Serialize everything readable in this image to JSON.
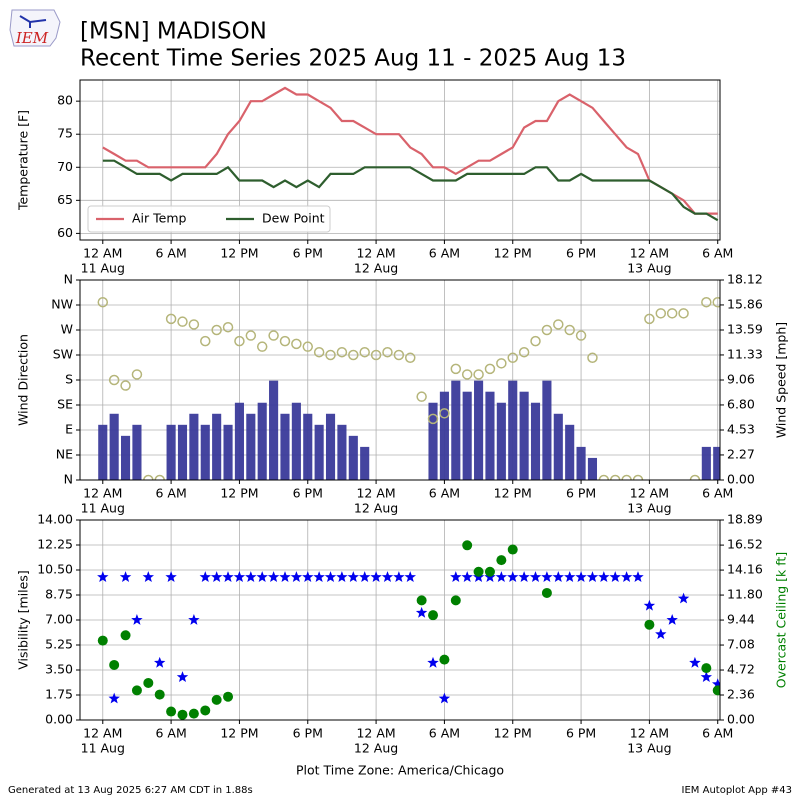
{
  "header": {
    "logo": "IEM",
    "title": "[MSN] MADISON",
    "subtitle": "Recent Time Series 2025 Aug 11 - 2025 Aug 13"
  },
  "footer": {
    "left": "Generated at 13 Aug 2025 6:27 AM CDT in 1.88s",
    "right": "IEM Autoplot App #43"
  },
  "chart_data": [
    {
      "type": "line",
      "ylabel": "Temperature [F]",
      "grid": true,
      "legend": "lower left",
      "xlim": [
        "2025-08-10T22:00",
        "2025-08-13T06:12"
      ],
      "xticks": [
        {
          "value": "2025-08-11T00:00",
          "label": "12 AM"
        },
        {
          "value": "2025-08-11T06:00",
          "label": "6 AM"
        },
        {
          "value": "2025-08-11T12:00",
          "label": "12 PM"
        },
        {
          "value": "2025-08-11T18:00",
          "label": "6 PM"
        },
        {
          "value": "2025-08-12T00:00",
          "label": "12 AM"
        },
        {
          "value": "2025-08-12T06:00",
          "label": "6 AM"
        },
        {
          "value": "2025-08-12T12:00",
          "label": "12 PM"
        },
        {
          "value": "2025-08-12T18:00",
          "label": "6 PM"
        },
        {
          "value": "2025-08-13T00:00",
          "label": "12 AM"
        },
        {
          "value": "2025-08-13T06:00",
          "label": "6 AM"
        }
      ],
      "xdates": [
        {
          "value": "2025-08-11T00:00",
          "label": "11 Aug"
        },
        {
          "value": "2025-08-12T00:00",
          "label": "12 Aug"
        },
        {
          "value": "2025-08-13T00:00",
          "label": "13 Aug"
        }
      ],
      "ylim": [
        59,
        83.2
      ],
      "yticks": [
        60,
        65,
        70,
        75,
        80
      ],
      "x": [
        "2025-08-11T00:00",
        "2025-08-11T01:00",
        "2025-08-11T02:00",
        "2025-08-11T03:00",
        "2025-08-11T04:00",
        "2025-08-11T05:00",
        "2025-08-11T06:00",
        "2025-08-11T07:00",
        "2025-08-11T08:00",
        "2025-08-11T09:00",
        "2025-08-11T10:00",
        "2025-08-11T11:00",
        "2025-08-11T12:00",
        "2025-08-11T13:00",
        "2025-08-11T14:00",
        "2025-08-11T15:00",
        "2025-08-11T16:00",
        "2025-08-11T17:00",
        "2025-08-11T18:00",
        "2025-08-11T19:00",
        "2025-08-11T20:00",
        "2025-08-11T21:00",
        "2025-08-11T22:00",
        "2025-08-11T23:00",
        "2025-08-12T00:00",
        "2025-08-12T01:00",
        "2025-08-12T02:00",
        "2025-08-12T03:00",
        "2025-08-12T04:00",
        "2025-08-12T05:00",
        "2025-08-12T06:00",
        "2025-08-12T07:00",
        "2025-08-12T08:00",
        "2025-08-12T09:00",
        "2025-08-12T10:00",
        "2025-08-12T11:00",
        "2025-08-12T12:00",
        "2025-08-12T13:00",
        "2025-08-12T14:00",
        "2025-08-12T15:00",
        "2025-08-12T16:00",
        "2025-08-12T17:00",
        "2025-08-12T18:00",
        "2025-08-12T19:00",
        "2025-08-12T20:00",
        "2025-08-12T21:00",
        "2025-08-12T22:00",
        "2025-08-12T23:00",
        "2025-08-13T00:00",
        "2025-08-13T01:00",
        "2025-08-13T02:00",
        "2025-08-13T03:00",
        "2025-08-13T04:00",
        "2025-08-13T05:00",
        "2025-08-13T06:00"
      ],
      "series": [
        {
          "name": "Air Temp",
          "color": "#d9626b",
          "values": [
            73,
            72,
            71,
            71,
            70,
            70,
            70,
            70,
            70,
            70,
            72,
            75,
            77,
            80,
            80,
            81,
            82,
            81,
            81,
            80,
            79,
            77,
            77,
            76,
            75,
            75,
            75,
            73,
            72,
            70,
            70,
            69,
            70,
            71,
            71,
            72,
            73,
            76,
            77,
            77,
            80,
            81,
            80,
            79,
            77,
            75,
            73,
            72,
            68,
            67,
            66,
            65,
            63,
            63,
            63
          ]
        },
        {
          "name": "Dew Point",
          "color": "#2e5e2e",
          "values": [
            71,
            71,
            70,
            69,
            69,
            69,
            68,
            69,
            69,
            69,
            69,
            70,
            68,
            68,
            68,
            67,
            68,
            67,
            68,
            67,
            69,
            69,
            69,
            70,
            70,
            70,
            70,
            70,
            69,
            68,
            68,
            68,
            69,
            69,
            69,
            69,
            69,
            69,
            70,
            70,
            68,
            68,
            69,
            68,
            68,
            68,
            68,
            68,
            68,
            67,
            66,
            64,
            63,
            63,
            62
          ]
        }
      ]
    },
    {
      "type": "combo",
      "ylabel": "Wind Direction",
      "y2label": "Wind Speed [mph]",
      "grid": true,
      "xlim": [
        "2025-08-10T22:00",
        "2025-08-13T06:12"
      ],
      "xticks": [
        {
          "value": "2025-08-11T00:00",
          "label": "12 AM"
        },
        {
          "value": "2025-08-11T06:00",
          "label": "6 AM"
        },
        {
          "value": "2025-08-11T12:00",
          "label": "12 PM"
        },
        {
          "value": "2025-08-11T18:00",
          "label": "6 PM"
        },
        {
          "value": "2025-08-12T00:00",
          "label": "12 AM"
        },
        {
          "value": "2025-08-12T06:00",
          "label": "6 AM"
        },
        {
          "value": "2025-08-12T12:00",
          "label": "12 PM"
        },
        {
          "value": "2025-08-12T18:00",
          "label": "6 PM"
        },
        {
          "value": "2025-08-13T00:00",
          "label": "12 AM"
        },
        {
          "value": "2025-08-13T06:00",
          "label": "6 AM"
        }
      ],
      "xdates": [
        {
          "value": "2025-08-11T00:00",
          "label": "11 Aug"
        },
        {
          "value": "2025-08-12T00:00",
          "label": "12 Aug"
        },
        {
          "value": "2025-08-13T00:00",
          "label": "13 Aug"
        }
      ],
      "ylim": [
        0,
        360
      ],
      "yticks": [
        {
          "value": 0,
          "label": "N"
        },
        {
          "value": 45,
          "label": "NE"
        },
        {
          "value": 90,
          "label": "E"
        },
        {
          "value": 135,
          "label": "SE"
        },
        {
          "value": 180,
          "label": "S"
        },
        {
          "value": 225,
          "label": "SW"
        },
        {
          "value": 270,
          "label": "W"
        },
        {
          "value": 315,
          "label": "NW"
        },
        {
          "value": 360,
          "label": "N"
        }
      ],
      "y2lim": [
        0,
        18.12
      ],
      "y2ticks": [
        {
          "value": 0,
          "label": "0.00"
        },
        2.27,
        4.53,
        {
          "value": 6.8,
          "label": "6.80"
        },
        9.06,
        11.33,
        13.59,
        15.86,
        18.12
      ],
      "x": [
        "2025-08-11T00:00",
        "2025-08-11T01:00",
        "2025-08-11T02:00",
        "2025-08-11T03:00",
        "2025-08-11T04:00",
        "2025-08-11T05:00",
        "2025-08-11T06:00",
        "2025-08-11T07:00",
        "2025-08-11T08:00",
        "2025-08-11T09:00",
        "2025-08-11T10:00",
        "2025-08-11T11:00",
        "2025-08-11T12:00",
        "2025-08-11T13:00",
        "2025-08-11T14:00",
        "2025-08-11T15:00",
        "2025-08-11T16:00",
        "2025-08-11T17:00",
        "2025-08-11T18:00",
        "2025-08-11T19:00",
        "2025-08-11T20:00",
        "2025-08-11T21:00",
        "2025-08-11T22:00",
        "2025-08-11T23:00",
        "2025-08-12T00:00",
        "2025-08-12T01:00",
        "2025-08-12T02:00",
        "2025-08-12T03:00",
        "2025-08-12T04:00",
        "2025-08-12T05:00",
        "2025-08-12T06:00",
        "2025-08-12T07:00",
        "2025-08-12T08:00",
        "2025-08-12T09:00",
        "2025-08-12T10:00",
        "2025-08-12T11:00",
        "2025-08-12T12:00",
        "2025-08-12T13:00",
        "2025-08-12T14:00",
        "2025-08-12T15:00",
        "2025-08-12T16:00",
        "2025-08-12T17:00",
        "2025-08-12T18:00",
        "2025-08-12T19:00",
        "2025-08-12T20:00",
        "2025-08-12T21:00",
        "2025-08-12T22:00",
        "2025-08-12T23:00",
        "2025-08-13T00:00",
        "2025-08-13T01:00",
        "2025-08-13T02:00",
        "2025-08-13T03:00",
        "2025-08-13T04:00",
        "2025-08-13T05:00",
        "2025-08-13T06:00"
      ],
      "series": [
        {
          "kind": "bar",
          "axis": "y2",
          "color": "#3a3a9a",
          "values": [
            5,
            6,
            4,
            5,
            0,
            0,
            5,
            5,
            6,
            5,
            6,
            5,
            7,
            6,
            7,
            9,
            6,
            7,
            6,
            5,
            6,
            5,
            4,
            3,
            0,
            0,
            0,
            0,
            0,
            7,
            8,
            9,
            8,
            9,
            8,
            7,
            9,
            8,
            7,
            9,
            6,
            5,
            3,
            2,
            0,
            0,
            0,
            0,
            0,
            0,
            0,
            0,
            0,
            3,
            3
          ]
        },
        {
          "kind": "circle",
          "color": "#b5b57a",
          "values": [
            320,
            180,
            170,
            190,
            0,
            0,
            290,
            285,
            280,
            250,
            270,
            275,
            250,
            260,
            240,
            260,
            250,
            245,
            240,
            230,
            225,
            230,
            225,
            230,
            225,
            230,
            225,
            220,
            150,
            110,
            120,
            200,
            190,
            190,
            200,
            210,
            220,
            230,
            250,
            270,
            280,
            270,
            260,
            220,
            0,
            0,
            0,
            0,
            290,
            300,
            300,
            300,
            0,
            320,
            320
          ]
        }
      ]
    },
    {
      "type": "combo",
      "ylabel": "Visibility [miles]",
      "y2label": "Overcast Ceiling [k ft]",
      "y2label_color": "#008000",
      "xlabel": "Plot Time Zone: America/Chicago",
      "grid": true,
      "xlim": [
        "2025-08-10T22:00",
        "2025-08-13T06:12"
      ],
      "xticks": [
        {
          "value": "2025-08-11T00:00",
          "label": "12 AM"
        },
        {
          "value": "2025-08-11T06:00",
          "label": "6 AM"
        },
        {
          "value": "2025-08-11T12:00",
          "label": "12 PM"
        },
        {
          "value": "2025-08-11T18:00",
          "label": "6 PM"
        },
        {
          "value": "2025-08-12T00:00",
          "label": "12 AM"
        },
        {
          "value": "2025-08-12T06:00",
          "label": "6 AM"
        },
        {
          "value": "2025-08-12T12:00",
          "label": "12 PM"
        },
        {
          "value": "2025-08-12T18:00",
          "label": "6 PM"
        },
        {
          "value": "2025-08-13T00:00",
          "label": "12 AM"
        },
        {
          "value": "2025-08-13T06:00",
          "label": "6 AM"
        }
      ],
      "xdates": [
        {
          "value": "2025-08-11T00:00",
          "label": "11 Aug"
        },
        {
          "value": "2025-08-12T00:00",
          "label": "12 Aug"
        },
        {
          "value": "2025-08-13T00:00",
          "label": "13 Aug"
        }
      ],
      "ylim": [
        0,
        14
      ],
      "yticks": [
        {
          "value": 0,
          "label": "0.00"
        },
        1.75,
        {
          "value": 3.5,
          "label": "3.50"
        },
        5.25,
        {
          "value": 7,
          "label": "7.00"
        },
        8.75,
        {
          "value": 10.5,
          "label": "10.50"
        },
        12.25,
        {
          "value": 14,
          "label": "14.00"
        }
      ],
      "y2lim": [
        0,
        18.89
      ],
      "y2ticks": [
        {
          "value": 0,
          "label": "0.00"
        },
        2.36,
        4.72,
        7.08,
        9.44,
        {
          "value": 11.8,
          "label": "11.80"
        },
        14.16,
        16.52,
        18.89
      ],
      "x": [
        "2025-08-11T00:00",
        "2025-08-11T01:00",
        "2025-08-11T02:00",
        "2025-08-11T03:00",
        "2025-08-11T04:00",
        "2025-08-11T05:00",
        "2025-08-11T06:00",
        "2025-08-11T07:00",
        "2025-08-11T08:00",
        "2025-08-11T09:00",
        "2025-08-11T10:00",
        "2025-08-11T11:00",
        "2025-08-11T12:00",
        "2025-08-11T13:00",
        "2025-08-11T14:00",
        "2025-08-11T15:00",
        "2025-08-11T16:00",
        "2025-08-11T17:00",
        "2025-08-11T18:00",
        "2025-08-11T19:00",
        "2025-08-11T20:00",
        "2025-08-11T21:00",
        "2025-08-11T22:00",
        "2025-08-11T23:00",
        "2025-08-12T00:00",
        "2025-08-12T01:00",
        "2025-08-12T02:00",
        "2025-08-12T03:00",
        "2025-08-12T04:00",
        "2025-08-12T05:00",
        "2025-08-12T06:00",
        "2025-08-12T07:00",
        "2025-08-12T08:00",
        "2025-08-12T09:00",
        "2025-08-12T10:00",
        "2025-08-12T11:00",
        "2025-08-12T12:00",
        "2025-08-12T13:00",
        "2025-08-12T14:00",
        "2025-08-12T15:00",
        "2025-08-12T16:00",
        "2025-08-12T17:00",
        "2025-08-12T18:00",
        "2025-08-12T19:00",
        "2025-08-12T20:00",
        "2025-08-12T21:00",
        "2025-08-12T22:00",
        "2025-08-12T23:00",
        "2025-08-13T00:00",
        "2025-08-13T01:00",
        "2025-08-13T02:00",
        "2025-08-13T03:00",
        "2025-08-13T04:00",
        "2025-08-13T05:00",
        "2025-08-13T06:00"
      ],
      "series": [
        {
          "kind": "star",
          "color": "#0000ee",
          "values": [
            10,
            1.5,
            10,
            7,
            10,
            4,
            10,
            3,
            7,
            10,
            10,
            10,
            10,
            10,
            10,
            10,
            10,
            10,
            10,
            10,
            10,
            10,
            10,
            10,
            10,
            10,
            10,
            10,
            7.5,
            4,
            1.5,
            10,
            10,
            10,
            10,
            10,
            10,
            10,
            10,
            10,
            10,
            10,
            10,
            10,
            10,
            10,
            10,
            10,
            8,
            6,
            7,
            8.5,
            4,
            3,
            2.5
          ]
        },
        {
          "kind": "dot",
          "axis": "y2",
          "color": "#008000",
          "values": [
            7.5,
            5.2,
            8,
            2.8,
            3.5,
            2.4,
            0.8,
            0.5,
            0.6,
            0.9,
            1.9,
            2.2,
            null,
            null,
            null,
            null,
            null,
            null,
            null,
            null,
            null,
            null,
            null,
            null,
            null,
            null,
            null,
            null,
            11.3,
            9.9,
            5.7,
            11.3,
            16.5,
            14,
            14,
            15.1,
            16.1,
            null,
            null,
            12,
            null,
            null,
            null,
            null,
            null,
            null,
            null,
            null,
            9,
            null,
            null,
            null,
            null,
            4.9,
            2.8
          ]
        }
      ]
    }
  ]
}
